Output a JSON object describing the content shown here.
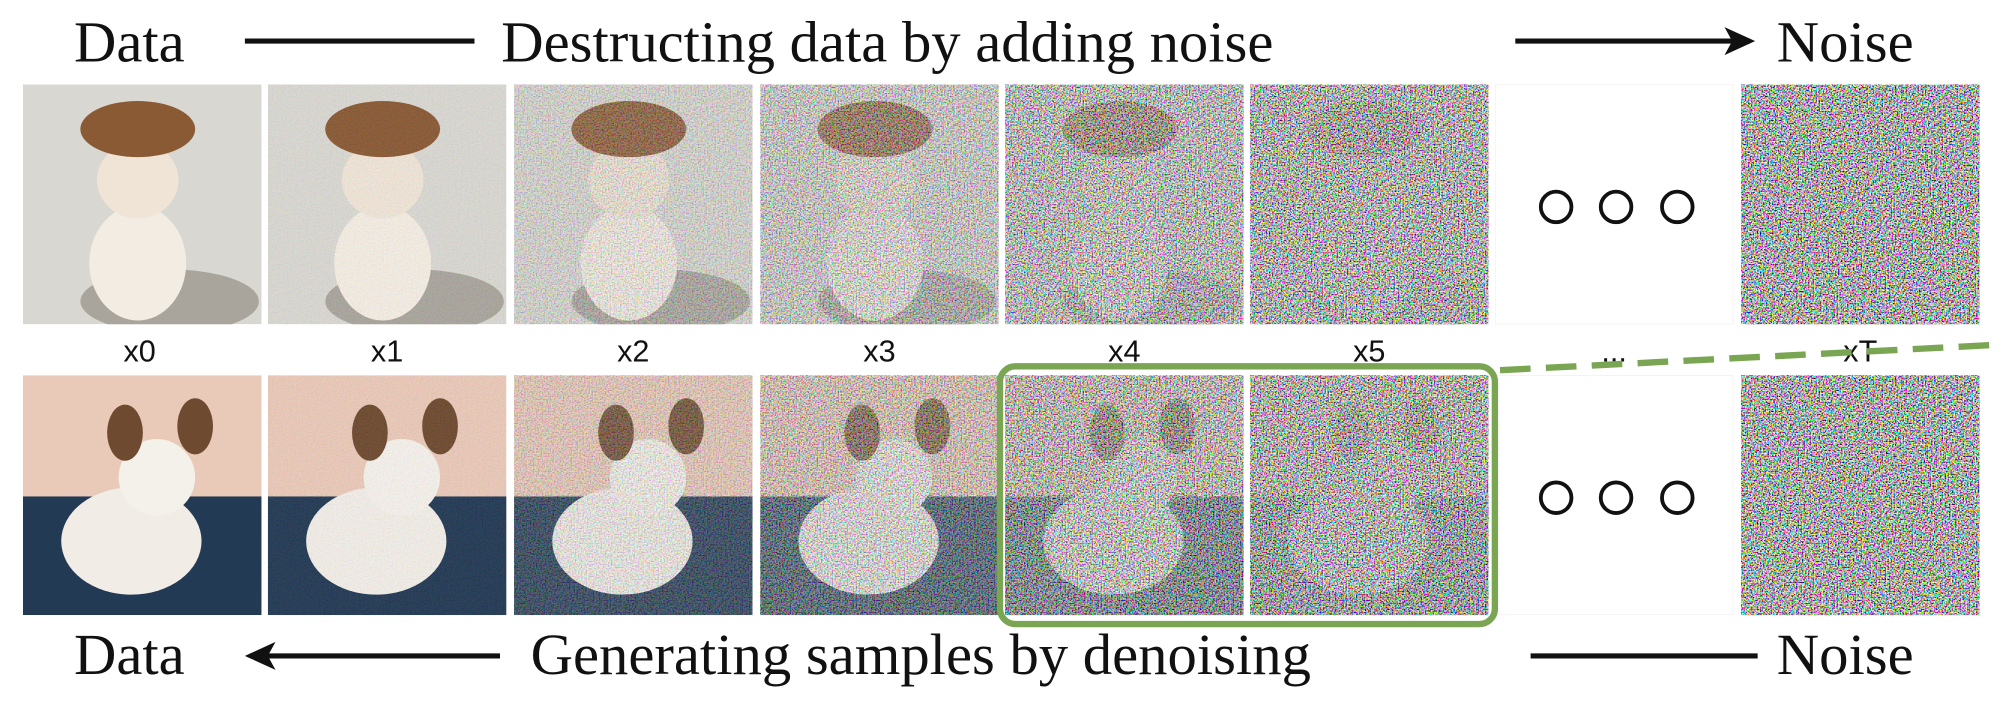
{
  "header": {
    "left": "Data",
    "title": "Destructing data by adding noise",
    "right": "Noise"
  },
  "labels": [
    "x0",
    "x1",
    "x2",
    "x3",
    "x4",
    "x5",
    "...",
    "xT"
  ],
  "footer": {
    "left": "Data",
    "title": "Generating samples by denoising",
    "right": "Noise"
  }
}
